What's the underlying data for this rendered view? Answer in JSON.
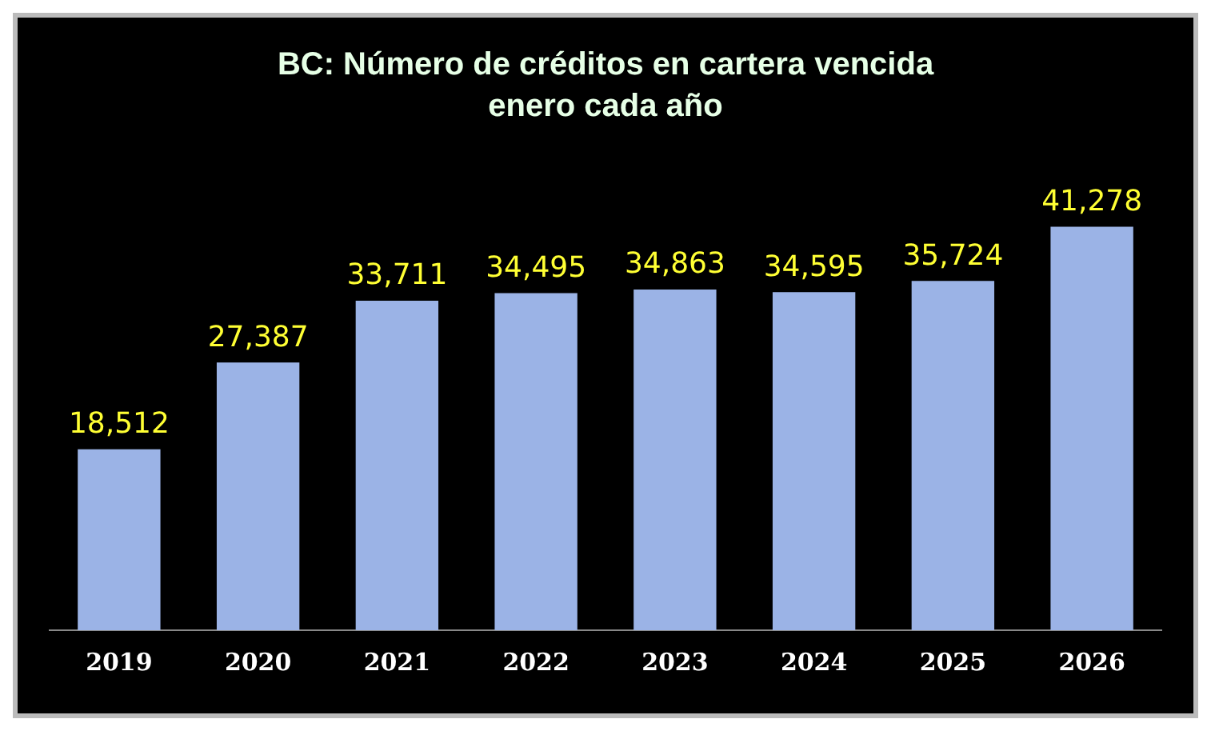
{
  "chart_data": {
    "type": "bar",
    "title": "BC: Número de créditos en cartera vencida",
    "subtitle": "enero cada año",
    "categories": [
      "2019",
      "2020",
      "2021",
      "2022",
      "2023",
      "2024",
      "2025",
      "2026"
    ],
    "values": [
      18512,
      27387,
      33711,
      34495,
      34863,
      34595,
      35724,
      41278
    ],
    "value_labels": [
      "18,512",
      "27,387",
      "33,711",
      "34,495",
      "34,863",
      "34,595",
      "35,724",
      "41,278"
    ],
    "color": "#9bb3e6",
    "grid": false,
    "legend": false
  }
}
